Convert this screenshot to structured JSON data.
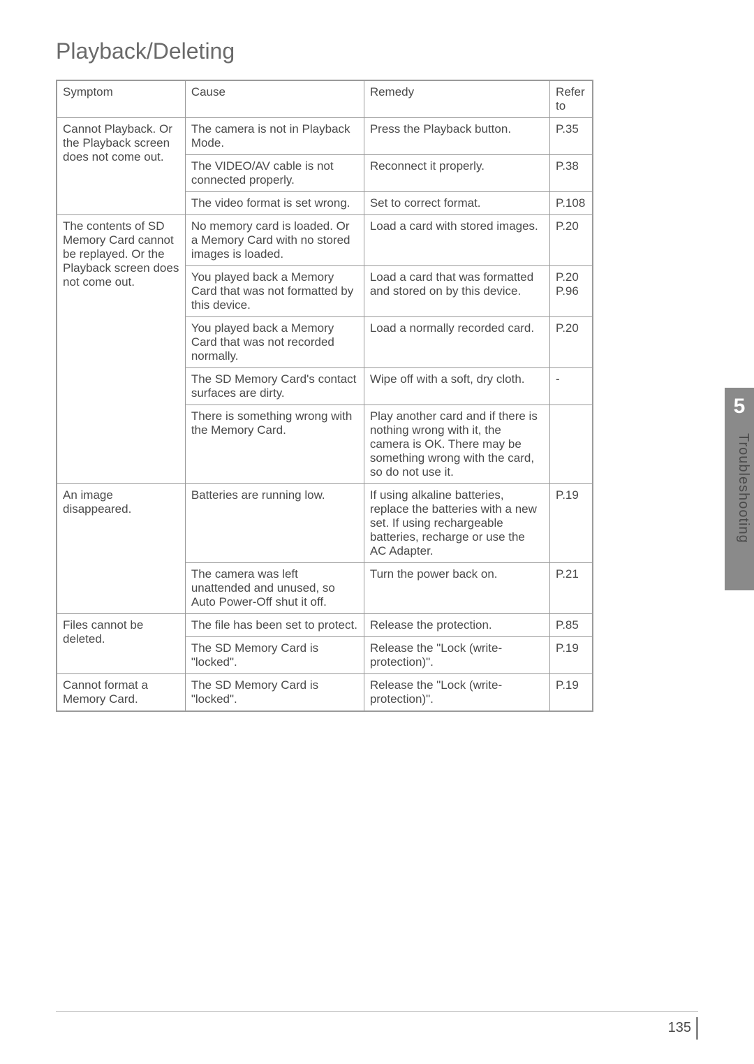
{
  "title": "Playback/Deleting",
  "sideTab": {
    "number": "5",
    "label": "Troubleshooting"
  },
  "pageNumber": "135",
  "headers": {
    "symptom": "Symptom",
    "cause": "Cause",
    "remedy": "Remedy",
    "refer": "Refer to"
  },
  "rows": [
    {
      "symptom": "Cannot Playback. Or the Playback screen does not come out.",
      "symptomRowspan": 3,
      "cause": "The camera is not in Playback Mode.",
      "remedy": "Press the Playback button.",
      "refer": "P.35"
    },
    {
      "cause": "The VIDEO/AV cable is not connected properly.",
      "remedy": "Reconnect it properly.",
      "refer": "P.38"
    },
    {
      "cause": "The video format is set wrong.",
      "remedy": "Set to correct format.",
      "refer": "P.108"
    },
    {
      "symptom": "The contents of SD Memory Card cannot be replayed. Or the Playback screen does not come out.",
      "symptomRowspan": 5,
      "cause": "No memory card is loaded. Or a Memory Card with no stored images is loaded.",
      "remedy": "Load a card with stored images.",
      "refer": "P.20"
    },
    {
      "cause": "You played back a Memory Card that was not formatted by this device.",
      "remedy": "Load a card that was formatted and stored on by this device.",
      "refer": "P.20 P.96"
    },
    {
      "cause": "You played back a Memory Card that was not recorded normally.",
      "remedy": "Load a normally recorded card.",
      "refer": "P.20"
    },
    {
      "cause": "The SD Memory Card's contact surfaces are dirty.",
      "remedy": "Wipe off with a soft, dry cloth.",
      "refer": "-"
    },
    {
      "cause": "There is something wrong with the Memory Card.",
      "remedy": "Play another card and if there is nothing wrong with it, the camera is OK. There may be something wrong with the card, so do not use it.",
      "refer": ""
    },
    {
      "symptom": "An image disappeared.",
      "symptomRowspan": 2,
      "cause": "Batteries are running low.",
      "remedy": "If using alkaline batteries, replace the batteries with a new set. If using rechargeable batteries, recharge or use the AC Adapter.",
      "refer": "P.19"
    },
    {
      "cause": "The camera was left unattended and unused, so Auto Power-Off shut it off.",
      "remedy": "Turn the power back on.",
      "refer": "P.21"
    },
    {
      "symptom": "Files cannot be deleted.",
      "symptomRowspan": 2,
      "cause": "The file has been set to protect.",
      "remedy": "Release the protection.",
      "refer": "P.85"
    },
    {
      "cause": "The SD Memory Card is \"locked\".",
      "remedy": "Release the \"Lock (write-protection)\".",
      "refer": "P.19"
    },
    {
      "symptom": "Cannot format a Memory Card.",
      "symptomRowspan": 1,
      "cause": "The SD Memory Card is \"locked\".",
      "remedy": "Release the \"Lock (write-protection)\".",
      "refer": "P.19"
    }
  ]
}
